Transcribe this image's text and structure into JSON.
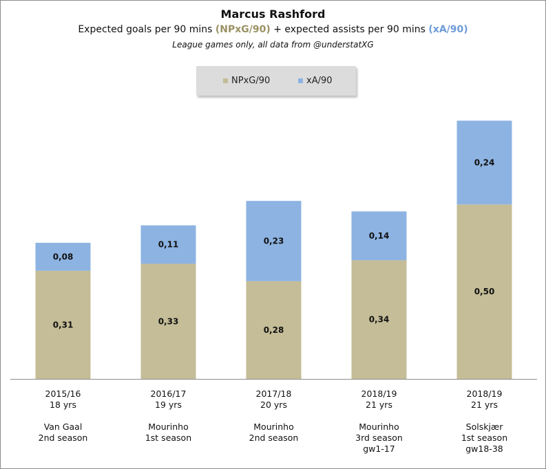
{
  "chart_data": {
    "type": "bar",
    "stacked": true,
    "title": "Marcus Rashford",
    "subtitle_parts": [
      "Expected  goals per 90 mins ",
      "(NPxG/90)",
      " + expected  assists per 90 mins ",
      "(xA/90)"
    ],
    "note": "League games only, all data from @understatXG",
    "legend_position": "top-center",
    "grid": false,
    "categories": [
      [
        "2015/16",
        "18 yrs",
        "",
        "Van Gaal",
        "2nd season"
      ],
      [
        "2016/17",
        "19 yrs",
        "",
        "Mourinho",
        "1st season"
      ],
      [
        "2017/18",
        "20 yrs",
        "",
        "Mourinho",
        "2nd season"
      ],
      [
        "2018/19",
        "21 yrs",
        "",
        "Mourinho",
        "3rd season",
        "gw1-17"
      ],
      [
        "2018/19",
        "21 yrs",
        "",
        "Solskjær",
        "1st season",
        "gw18-38"
      ]
    ],
    "series": [
      {
        "name": "NPxG/90",
        "color": "#c4bd97",
        "values": [
          0.31,
          0.33,
          0.28,
          0.34,
          0.5
        ],
        "labels": [
          "0,31",
          "0,33",
          "0,28",
          "0,34",
          "0,50"
        ]
      },
      {
        "name": "xA/90",
        "color": "#8db3e2",
        "values": [
          0.08,
          0.11,
          0.23,
          0.14,
          0.24
        ],
        "labels": [
          "0,08",
          "0,11",
          "0,23",
          "0,14",
          "0,24"
        ]
      }
    ],
    "ylim": [
      0,
      0.8
    ]
  }
}
